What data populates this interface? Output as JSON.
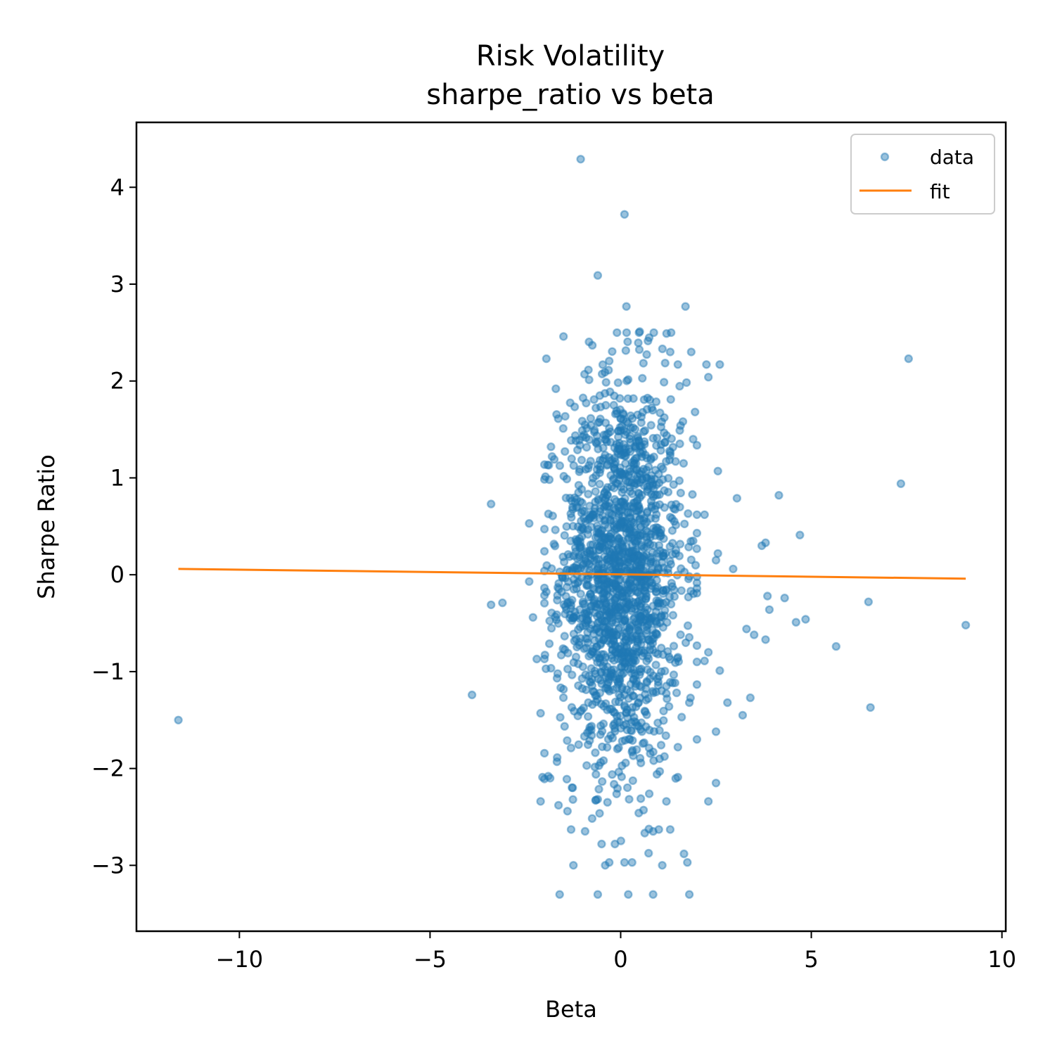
{
  "chart_data": {
    "type": "scatter",
    "title": "Risk Volatility",
    "subtitle": "sharpe_ratio vs beta",
    "xlabel": "Beta",
    "ylabel": "Sharpe Ratio",
    "xlim": [
      -12.7,
      10.1
    ],
    "ylim": [
      -3.68,
      4.67
    ],
    "xticks": [
      -10,
      -5,
      0,
      5,
      10
    ],
    "yticks": [
      -3,
      -2,
      -1,
      0,
      1,
      2,
      3,
      4
    ],
    "xtick_labels": [
      "−10",
      "−5",
      "0",
      "5",
      "10"
    ],
    "ytick_labels": [
      "−3",
      "−2",
      "−1",
      "0",
      "1",
      "2",
      "3",
      "4"
    ],
    "grid": false,
    "legend": {
      "position": "top-right",
      "entries": [
        "data",
        "fit"
      ]
    },
    "colors": {
      "data": "#1f77b4",
      "fit": "#ff7f0e"
    },
    "series": [
      {
        "name": "data",
        "kind": "scatter",
        "cluster": {
          "count": 1700,
          "x_center": 0.0,
          "x_spread": 0.8,
          "y_center": 0.0,
          "y_spread": 1.0
        },
        "points": [
          [
            -11.6,
            -1.5
          ],
          [
            -3.9,
            -1.24
          ],
          [
            -3.4,
            0.73
          ],
          [
            -3.4,
            -0.31
          ],
          [
            -3.1,
            -0.29
          ],
          [
            -2.4,
            0.53
          ],
          [
            -2.4,
            -0.07
          ],
          [
            -2.3,
            -0.44
          ],
          [
            -2.2,
            -0.87
          ],
          [
            -2.1,
            -1.43
          ],
          [
            -2.05,
            -2.09
          ],
          [
            -2.1,
            -2.34
          ],
          [
            -1.95,
            2.23
          ],
          [
            -1.8,
            1.22
          ],
          [
            -1.7,
            1.92
          ],
          [
            -1.6,
            -3.3
          ],
          [
            -1.85,
            -2.1
          ],
          [
            -1.9,
            -2.08
          ],
          [
            -1.5,
            2.46
          ],
          [
            -1.05,
            4.29
          ],
          [
            -0.6,
            3.09
          ],
          [
            0.1,
            3.72
          ],
          [
            0.15,
            2.77
          ],
          [
            1.7,
            2.77
          ],
          [
            0.5,
            2.51
          ],
          [
            -0.6,
            -3.3
          ],
          [
            0.2,
            -3.3
          ],
          [
            0.85,
            -3.3
          ],
          [
            1.8,
            -3.3
          ],
          [
            0.3,
            -2.97
          ],
          [
            0.1,
            -2.97
          ],
          [
            -0.3,
            -2.97
          ],
          [
            1.75,
            -2.97
          ],
          [
            -0.5,
            -2.78
          ],
          [
            -0.15,
            -2.78
          ],
          [
            1.3,
            -2.63
          ],
          [
            -1.3,
            -2.63
          ],
          [
            2.3,
            -2.34
          ],
          [
            2.5,
            -2.15
          ],
          [
            2.0,
            -1.7
          ],
          [
            2.5,
            -1.62
          ],
          [
            2.8,
            -1.32
          ],
          [
            3.4,
            -1.27
          ],
          [
            3.2,
            -1.45
          ],
          [
            2.6,
            -0.99
          ],
          [
            2.3,
            -0.8
          ],
          [
            3.3,
            -0.56
          ],
          [
            3.5,
            -0.62
          ],
          [
            3.8,
            -0.67
          ],
          [
            3.9,
            -0.36
          ],
          [
            3.85,
            -0.22
          ],
          [
            4.3,
            -0.24
          ],
          [
            4.6,
            -0.49
          ],
          [
            4.85,
            -0.46
          ],
          [
            5.65,
            -0.74
          ],
          [
            6.5,
            -0.28
          ],
          [
            6.55,
            -1.37
          ],
          [
            9.05,
            -0.52
          ],
          [
            7.35,
            0.94
          ],
          [
            7.55,
            2.23
          ],
          [
            4.7,
            0.41
          ],
          [
            4.15,
            0.82
          ],
          [
            3.8,
            0.33
          ],
          [
            3.7,
            0.3
          ],
          [
            3.05,
            0.79
          ],
          [
            2.95,
            0.06
          ],
          [
            2.55,
            0.22
          ],
          [
            2.5,
            0.15
          ],
          [
            2.55,
            1.07
          ],
          [
            2.2,
            0.62
          ],
          [
            2.0,
            0.62
          ],
          [
            1.9,
            0.35
          ],
          [
            2.25,
            2.17
          ],
          [
            2.6,
            2.17
          ],
          [
            2.3,
            2.04
          ],
          [
            1.85,
            2.3
          ],
          [
            1.95,
            1.68
          ],
          [
            1.9,
            1.4
          ],
          [
            1.65,
            1.15
          ],
          [
            1.55,
            1.49
          ],
          [
            1.5,
            2.17
          ],
          [
            1.3,
            2.3
          ],
          [
            2.0,
            -0.9
          ],
          [
            2.2,
            -0.89
          ],
          [
            1.6,
            -1.47
          ],
          [
            1.5,
            -1.78
          ],
          [
            1.8,
            -1.32
          ],
          [
            1.5,
            -2.09
          ],
          [
            1.2,
            -2.34
          ],
          [
            1.0,
            -2.63
          ],
          [
            0.85,
            -2.65
          ],
          [
            0.6,
            -2.43
          ],
          [
            0.95,
            -2.06
          ]
        ]
      },
      {
        "name": "fit",
        "kind": "line",
        "x": [
          -11.6,
          9.05
        ],
        "y": [
          0.06,
          -0.04
        ]
      }
    ]
  }
}
